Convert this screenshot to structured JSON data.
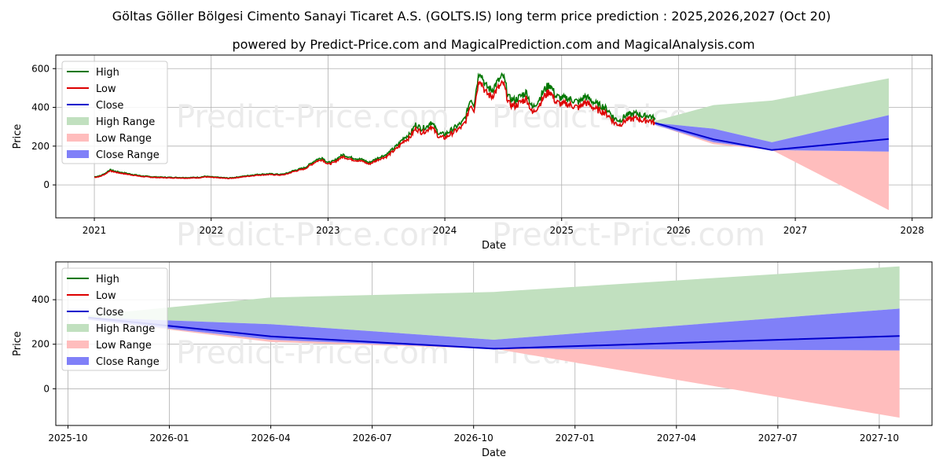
{
  "title": "Göltas Göller Bölgesi Cimento Sanayi Ticaret A.S. (GOLTS.IS) long term price prediction : 2025,2026,2027 (Oct 20)",
  "subtitle": "powered by Predict-Price.com and MagicalPrediction.com and MagicalAnalysis.com",
  "watermark": "Predict-Price.com",
  "colors": {
    "high": "#007700",
    "low": "#dd0000",
    "close": "#0000cc",
    "high_range": "#c1e0bf",
    "low_range": "#ffbdbd",
    "close_range": "#8080f8"
  },
  "chart_data": [
    {
      "type": "line",
      "name": "history-and-forecast",
      "xlabel": "Date",
      "ylabel": "Price",
      "xlim": [
        2020.67,
        2028.17
      ],
      "ylim": [
        -170,
        670
      ],
      "x_ticks": [
        2021,
        2022,
        2023,
        2024,
        2025,
        2026,
        2027,
        2028
      ],
      "x_tick_labels": [
        "2021",
        "2022",
        "2023",
        "2024",
        "2025",
        "2026",
        "2027",
        "2028"
      ],
      "y_ticks": [
        0,
        200,
        400,
        600
      ],
      "y_tick_labels": [
        "0",
        "200",
        "400",
        "600"
      ],
      "grid": true,
      "legend": [
        "High",
        "Low",
        "Close",
        "High Range",
        "Low Range",
        "Close Range"
      ],
      "legend_position": "top-left",
      "history_x": [
        2021.0,
        2021.05,
        2021.1,
        2021.13,
        2021.2,
        2021.3,
        2021.4,
        2021.5,
        2021.6,
        2021.7,
        2021.8,
        2021.9,
        2021.95,
        2022.0,
        2022.1,
        2022.15,
        2022.2,
        2022.3,
        2022.4,
        2022.5,
        2022.6,
        2022.65,
        2022.7,
        2022.75,
        2022.8,
        2022.85,
        2022.9,
        2022.95,
        2023.0,
        2023.05,
        2023.1,
        2023.13,
        2023.15,
        2023.2,
        2023.3,
        2023.35,
        2023.4,
        2023.45,
        2023.5,
        2023.55,
        2023.6,
        2023.65,
        2023.7,
        2023.75,
        2023.8,
        2023.85,
        2023.88,
        2023.92,
        2023.95,
        2024.0,
        2024.05,
        2024.1,
        2024.15,
        2024.18,
        2024.22,
        2024.25,
        2024.28,
        2024.3,
        2024.35,
        2024.4,
        2024.45,
        2024.5,
        2024.55,
        2024.6,
        2024.65,
        2024.7,
        2024.75,
        2024.8,
        2024.85,
        2024.9,
        2024.95,
        2025.0,
        2025.05,
        2025.1,
        2025.15,
        2025.2,
        2025.25,
        2025.3,
        2025.35,
        2025.4,
        2025.45,
        2025.5,
        2025.55,
        2025.6,
        2025.65,
        2025.7,
        2025.75,
        2025.8
      ],
      "close_history": [
        40,
        45,
        60,
        75,
        65,
        55,
        45,
        40,
        38,
        37,
        36,
        38,
        43,
        40,
        36,
        34,
        37,
        45,
        52,
        55,
        52,
        58,
        70,
        78,
        85,
        105,
        125,
        135,
        110,
        118,
        140,
        150,
        145,
        135,
        125,
        110,
        125,
        140,
        150,
        175,
        200,
        235,
        250,
        300,
        280,
        290,
        315,
        280,
        255,
        250,
        270,
        290,
        310,
        340,
        430,
        400,
        520,
        570,
        490,
        470,
        510,
        540,
        430,
        420,
        440,
        460,
        380,
        420,
        470,
        500,
        440,
        430,
        430,
        420,
        410,
        440,
        420,
        400,
        390,
        370,
        330,
        320,
        345,
        350,
        355,
        340,
        345,
        325
      ],
      "forecast_x": [
        2025.8,
        2026.3,
        2026.8,
        2027.8
      ],
      "forecast_close": [
        320,
        235,
        180,
        237
      ],
      "forecast_high": [
        330,
        412,
        435,
        550
      ],
      "forecast_low": [
        310,
        210,
        180,
        -130
      ],
      "forecast_close_hi": [
        320,
        290,
        220,
        360
      ],
      "forecast_close_lo": [
        310,
        220,
        180,
        172
      ]
    },
    {
      "type": "line",
      "name": "forecast-zoom",
      "xlabel": "Date",
      "ylabel": "Price",
      "xlim": [
        2025.72,
        2027.88
      ],
      "ylim": [
        -165,
        570
      ],
      "x_ticks": [
        2025.75,
        2026.0,
        2026.25,
        2026.5,
        2026.75,
        2027.0,
        2027.25,
        2027.5,
        2027.75
      ],
      "x_tick_labels": [
        "2025-10",
        "2026-01",
        "2026-04",
        "2026-07",
        "2026-10",
        "2027-01",
        "2027-04",
        "2027-07",
        "2027-10"
      ],
      "y_ticks": [
        0,
        200,
        400
      ],
      "y_tick_labels": [
        "0",
        "200",
        "400"
      ],
      "grid": true,
      "legend": [
        "High",
        "Low",
        "Close",
        "High Range",
        "Low Range",
        "Close Range"
      ],
      "legend_position": "top-left",
      "forecast_x": [
        2025.8,
        2026.25,
        2026.8,
        2027.8
      ],
      "forecast_close": [
        320,
        235,
        180,
        237
      ],
      "forecast_high": [
        330,
        410,
        435,
        550
      ],
      "forecast_low": [
        310,
        210,
        180,
        -130
      ],
      "forecast_close_hi": [
        320,
        290,
        220,
        360
      ],
      "forecast_close_lo": [
        310,
        220,
        180,
        172
      ]
    }
  ]
}
